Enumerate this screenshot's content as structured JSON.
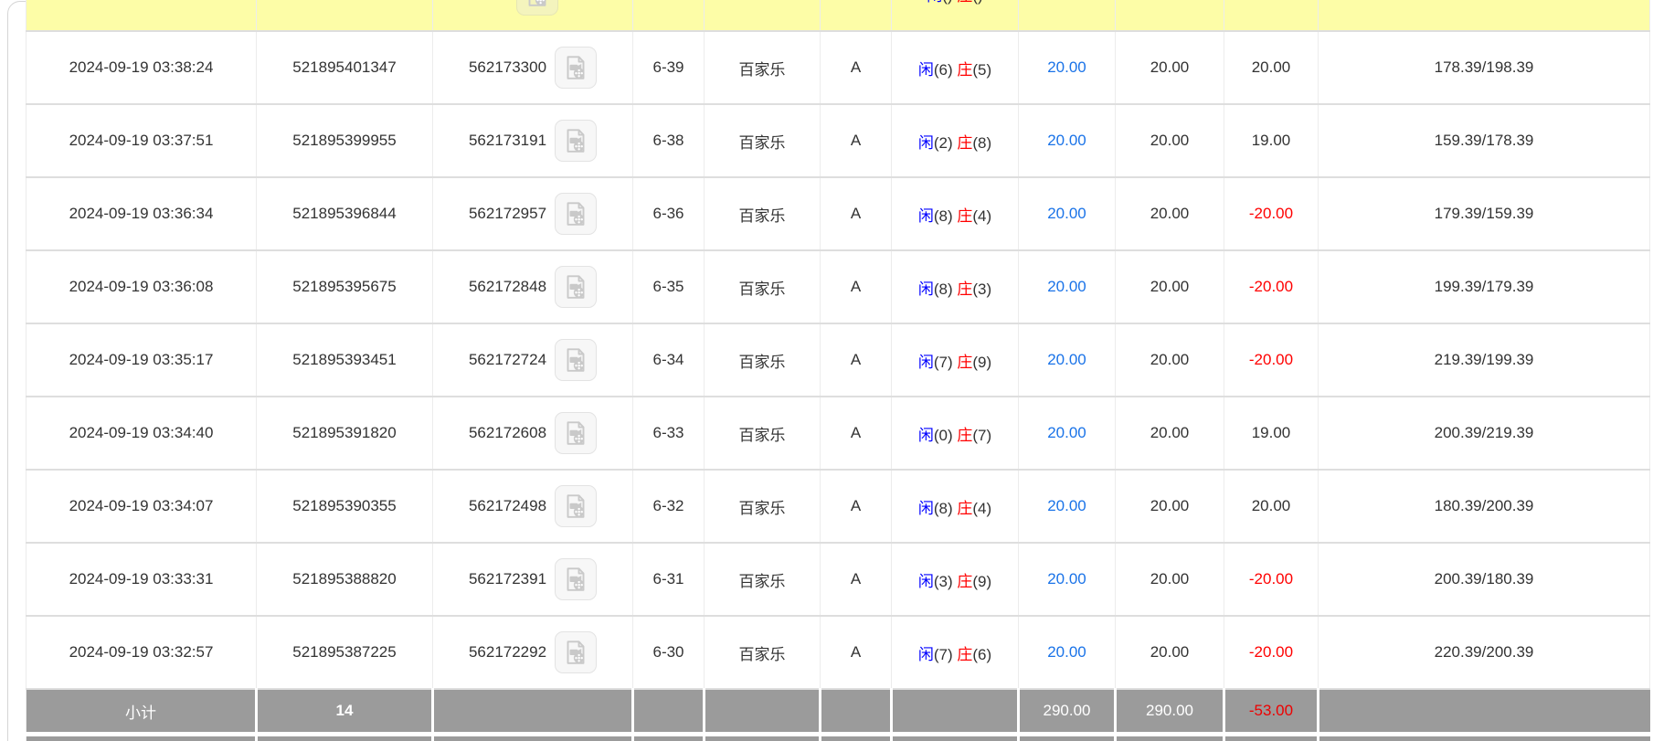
{
  "labels": {
    "player": "闲",
    "banker": "庄",
    "game_baccarat": "百家乐",
    "subtotal": "小计",
    "video_icon": "video-replay-icon"
  },
  "colors": {
    "highlight_row_bg": "#fdfda7",
    "row_border": "#dedede",
    "cell_border": "#ececec",
    "subtotal_bg": "#9b9b9b",
    "subtotal_text": "#ffffff",
    "player_blue": "#0000ff",
    "banker_red": "#ff0000",
    "bet_link_blue": "#1a73e8",
    "loss_red": "#ff0000",
    "text": "#333333",
    "icon_bg": "#f7f7f7",
    "icon_glyph": "#c9c9c9"
  },
  "columns": {
    "widths": [
      252,
      193,
      219,
      78,
      127,
      78,
      139,
      106,
      119,
      103,
      363
    ]
  },
  "table": {
    "rows": [
      {
        "highlight": true,
        "time": "",
        "bet_id": "",
        "round_id": "",
        "session": "",
        "game": "",
        "table": "",
        "player_pts": "()",
        "banker_pts": "()",
        "bet": "",
        "valid": "",
        "winloss": "",
        "balance": ""
      },
      {
        "highlight": false,
        "time": "2024-09-19 03:38:24",
        "bet_id": "521895401347",
        "round_id": "562173300",
        "session": "6-39",
        "game": "百家乐",
        "table": "A",
        "player_pts": "(6)",
        "banker_pts": "(5)",
        "bet": "20.00",
        "valid": "20.00",
        "winloss": "20.00",
        "balance": "178.39/198.39"
      },
      {
        "highlight": false,
        "time": "2024-09-19 03:37:51",
        "bet_id": "521895399955",
        "round_id": "562173191",
        "session": "6-38",
        "game": "百家乐",
        "table": "A",
        "player_pts": "(2)",
        "banker_pts": "(8)",
        "bet": "20.00",
        "valid": "20.00",
        "winloss": "19.00",
        "balance": "159.39/178.39"
      },
      {
        "highlight": false,
        "time": "2024-09-19 03:36:34",
        "bet_id": "521895396844",
        "round_id": "562172957",
        "session": "6-36",
        "game": "百家乐",
        "table": "A",
        "player_pts": "(8)",
        "banker_pts": "(4)",
        "bet": "20.00",
        "valid": "20.00",
        "winloss": "-20.00",
        "balance": "179.39/159.39"
      },
      {
        "highlight": false,
        "time": "2024-09-19 03:36:08",
        "bet_id": "521895395675",
        "round_id": "562172848",
        "session": "6-35",
        "game": "百家乐",
        "table": "A",
        "player_pts": "(8)",
        "banker_pts": "(3)",
        "bet": "20.00",
        "valid": "20.00",
        "winloss": "-20.00",
        "balance": "199.39/179.39"
      },
      {
        "highlight": false,
        "time": "2024-09-19 03:35:17",
        "bet_id": "521895393451",
        "round_id": "562172724",
        "session": "6-34",
        "game": "百家乐",
        "table": "A",
        "player_pts": "(7)",
        "banker_pts": "(9)",
        "bet": "20.00",
        "valid": "20.00",
        "winloss": "-20.00",
        "balance": "219.39/199.39"
      },
      {
        "highlight": false,
        "time": "2024-09-19 03:34:40",
        "bet_id": "521895391820",
        "round_id": "562172608",
        "session": "6-33",
        "game": "百家乐",
        "table": "A",
        "player_pts": "(0)",
        "banker_pts": "(7)",
        "bet": "20.00",
        "valid": "20.00",
        "winloss": "19.00",
        "balance": "200.39/219.39"
      },
      {
        "highlight": false,
        "time": "2024-09-19 03:34:07",
        "bet_id": "521895390355",
        "round_id": "562172498",
        "session": "6-32",
        "game": "百家乐",
        "table": "A",
        "player_pts": "(8)",
        "banker_pts": "(4)",
        "bet": "20.00",
        "valid": "20.00",
        "winloss": "20.00",
        "balance": "180.39/200.39"
      },
      {
        "highlight": false,
        "time": "2024-09-19 03:33:31",
        "bet_id": "521895388820",
        "round_id": "562172391",
        "session": "6-31",
        "game": "百家乐",
        "table": "A",
        "player_pts": "(3)",
        "banker_pts": "(9)",
        "bet": "20.00",
        "valid": "20.00",
        "winloss": "-20.00",
        "balance": "200.39/180.39"
      },
      {
        "highlight": false,
        "time": "2024-09-19 03:32:57",
        "bet_id": "521895387225",
        "round_id": "562172292",
        "session": "6-30",
        "game": "百家乐",
        "table": "A",
        "player_pts": "(7)",
        "banker_pts": "(6)",
        "bet": "20.00",
        "valid": "20.00",
        "winloss": "-20.00",
        "balance": "220.39/200.39"
      }
    ],
    "subtotal": {
      "label": "小计",
      "count": "14",
      "bet": "290.00",
      "valid": "290.00",
      "winloss": "-53.00"
    }
  }
}
